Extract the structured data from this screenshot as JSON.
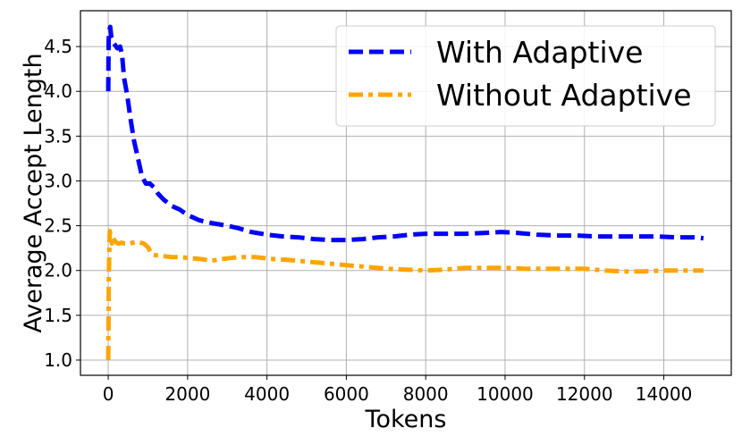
{
  "chart_data": {
    "type": "line",
    "title": "",
    "xlabel": "Tokens",
    "ylabel": "Average Accept Length",
    "xlim": [
      -700,
      15700
    ],
    "ylim": [
      0.83,
      4.9
    ],
    "xticks": [
      0,
      2000,
      4000,
      6000,
      8000,
      10000,
      12000,
      14000
    ],
    "yticks": [
      1.0,
      1.5,
      2.0,
      2.5,
      3.0,
      3.5,
      4.0,
      4.5
    ],
    "xtick_labels": [
      "0",
      "2000",
      "4000",
      "6000",
      "8000",
      "10000",
      "12000",
      "14000"
    ],
    "ytick_labels": [
      "1.0",
      "1.5",
      "2.0",
      "2.5",
      "3.0",
      "3.5",
      "4.0",
      "4.5"
    ],
    "grid": true,
    "legend_position": "top-right",
    "series": [
      {
        "name": "With Adaptive",
        "color": "#0000ff",
        "style": "dashed",
        "x": [
          0,
          10,
          25,
          50,
          80,
          120,
          170,
          230,
          300,
          350,
          400,
          480,
          560,
          650,
          750,
          850,
          950,
          1050,
          1150,
          1250,
          1400,
          1600,
          1800,
          2000,
          2300,
          2600,
          3000,
          3300,
          3600,
          4000,
          4400,
          4800,
          5200,
          5600,
          6000,
          6400,
          6800,
          7200,
          7600,
          8000,
          8500,
          9000,
          9500,
          9900,
          10300,
          10800,
          11300,
          11800,
          12300,
          12800,
          13300,
          13800,
          14300,
          14800,
          15000
        ],
        "y": [
          4.0,
          4.55,
          4.68,
          4.72,
          4.6,
          4.55,
          4.52,
          4.48,
          4.5,
          4.4,
          4.15,
          3.95,
          3.7,
          3.45,
          3.25,
          3.05,
          2.97,
          2.97,
          2.93,
          2.86,
          2.79,
          2.72,
          2.68,
          2.62,
          2.56,
          2.53,
          2.5,
          2.47,
          2.43,
          2.4,
          2.38,
          2.37,
          2.35,
          2.34,
          2.34,
          2.35,
          2.37,
          2.38,
          2.4,
          2.41,
          2.41,
          2.41,
          2.42,
          2.43,
          2.42,
          2.4,
          2.39,
          2.39,
          2.38,
          2.38,
          2.38,
          2.38,
          2.37,
          2.37,
          2.36
        ]
      },
      {
        "name": "Without Adaptive",
        "color": "#ffa500",
        "style": "dashdot",
        "x": [
          0,
          8,
          15,
          25,
          40,
          60,
          90,
          130,
          180,
          250,
          330,
          420,
          520,
          620,
          720,
          820,
          900,
          1000,
          1100,
          1200,
          1400,
          1600,
          1800,
          2000,
          2300,
          2600,
          2900,
          3300,
          3700,
          4100,
          4500,
          5000,
          5500,
          6000,
          6500,
          7000,
          7500,
          8000,
          8500,
          9000,
          9500,
          10000,
          10500,
          11000,
          11500,
          12000,
          12500,
          13000,
          13500,
          14000,
          14500,
          15000
        ],
        "y": [
          1.0,
          1.4,
          1.9,
          2.2,
          2.44,
          2.38,
          2.3,
          2.36,
          2.32,
          2.3,
          2.31,
          2.3,
          2.3,
          2.31,
          2.32,
          2.31,
          2.3,
          2.26,
          2.18,
          2.17,
          2.16,
          2.15,
          2.15,
          2.14,
          2.13,
          2.11,
          2.13,
          2.15,
          2.15,
          2.13,
          2.12,
          2.1,
          2.08,
          2.06,
          2.04,
          2.02,
          2.01,
          2.0,
          2.01,
          2.03,
          2.03,
          2.03,
          2.02,
          2.02,
          2.02,
          2.02,
          2.0,
          1.99,
          1.99,
          2.0,
          2.0,
          2.0
        ]
      }
    ]
  }
}
